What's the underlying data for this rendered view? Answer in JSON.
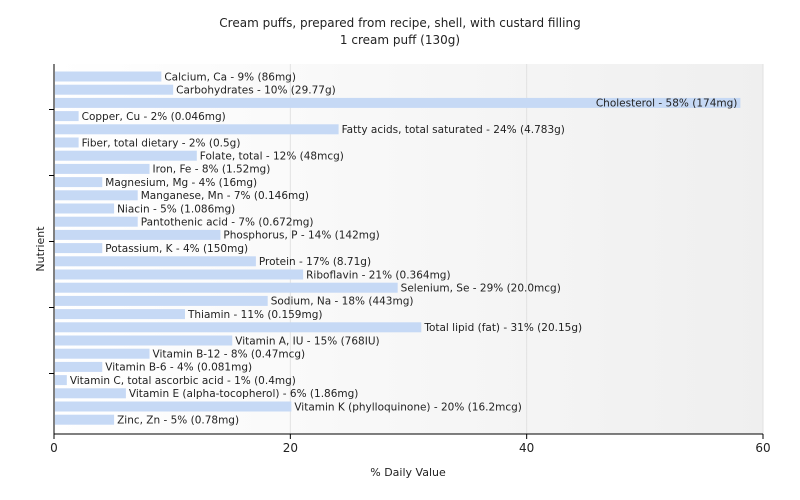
{
  "chart_data": {
    "type": "bar",
    "orientation": "horizontal",
    "title": "Cream puffs, prepared from recipe, shell, with custard filling",
    "subtitle": "1 cream puff (130g)",
    "xlabel": "% Daily Value",
    "ylabel": "Nutrient",
    "xlim": [
      0,
      60
    ],
    "xticks": [
      0,
      20,
      40,
      60
    ],
    "grid": true,
    "bar_color": "#c6d9f5",
    "categories": [
      "Calcium, Ca",
      "Carbohydrates",
      "Cholesterol",
      "Copper, Cu",
      "Fatty acids, total saturated",
      "Fiber, total dietary",
      "Folate, total",
      "Iron, Fe",
      "Magnesium, Mg",
      "Manganese, Mn",
      "Niacin",
      "Pantothenic acid",
      "Phosphorus, P",
      "Potassium, K",
      "Protein",
      "Riboflavin",
      "Selenium, Se",
      "Sodium, Na",
      "Thiamin",
      "Total lipid (fat)",
      "Vitamin A, IU",
      "Vitamin B-12",
      "Vitamin B-6",
      "Vitamin C, total ascorbic acid",
      "Vitamin E (alpha-tocopherol)",
      "Vitamin K (phylloquinone)",
      "Zinc, Zn"
    ],
    "values": [
      9,
      10,
      58,
      2,
      24,
      2,
      12,
      8,
      4,
      7,
      5,
      7,
      14,
      4,
      17,
      21,
      29,
      18,
      11,
      31,
      15,
      8,
      4,
      1,
      6,
      20,
      5
    ],
    "labels": [
      "Calcium, Ca - 9% (86mg)",
      "Carbohydrates - 10% (29.77g)",
      "Cholesterol - 58% (174mg)",
      "Copper, Cu - 2% (0.046mg)",
      "Fatty acids, total saturated - 24% (4.783g)",
      "Fiber, total dietary - 2% (0.5g)",
      "Folate, total - 12% (48mcg)",
      "Iron, Fe - 8% (1.52mg)",
      "Magnesium, Mg - 4% (16mg)",
      "Manganese, Mn - 7% (0.146mg)",
      "Niacin - 5% (1.086mg)",
      "Pantothenic acid - 7% (0.672mg)",
      "Phosphorus, P - 14% (142mg)",
      "Potassium, K - 4% (150mg)",
      "Protein - 17% (8.71g)",
      "Riboflavin - 21% (0.364mg)",
      "Selenium, Se - 29% (20.0mcg)",
      "Sodium, Na - 18% (443mg)",
      "Thiamin - 11% (0.159mg)",
      "Total lipid (fat) - 31% (20.15g)",
      "Vitamin A, IU - 15% (768IU)",
      "Vitamin B-12 - 8% (0.47mcg)",
      "Vitamin B-6 - 4% (0.081mg)",
      "Vitamin C, total ascorbic acid - 1% (0.4mg)",
      "Vitamin E (alpha-tocopherol) - 6% (1.86mg)",
      "Vitamin K (phylloquinone) - 20% (16.2mcg)",
      "Zinc, Zn - 5% (0.78mg)"
    ]
  }
}
